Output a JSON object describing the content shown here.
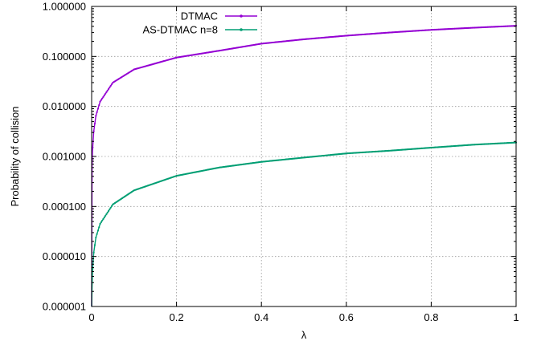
{
  "chart_data": {
    "type": "line",
    "title": "",
    "xlabel": "λ",
    "ylabel": "Probability of collision",
    "xlim": [
      0,
      1
    ],
    "ylim": [
      1e-06,
      1
    ],
    "yscale": "log",
    "grid": true,
    "legend_position": "top-left",
    "x_ticks": [
      "0",
      "0.2",
      "0.4",
      "0.6",
      "0.8",
      "1"
    ],
    "y_ticks": [
      "0.000001",
      "0.000010",
      "0.000100",
      "0.001000",
      "0.010000",
      "0.100000",
      "1.000000"
    ],
    "series": [
      {
        "name": "DTMAC",
        "color": "#9400d3",
        "x": [
          0.001,
          0.002,
          0.005,
          0.01,
          0.02,
          0.05,
          0.1,
          0.2,
          0.3,
          0.4,
          0.5,
          0.6,
          0.7,
          0.8,
          0.9,
          1.0
        ],
        "y": [
          0.00065,
          0.0013,
          0.0032,
          0.0065,
          0.0125,
          0.03,
          0.055,
          0.095,
          0.13,
          0.18,
          0.22,
          0.26,
          0.3,
          0.34,
          0.375,
          0.41
        ]
      },
      {
        "name": "AS-DTMAC n=8",
        "color": "#009e73",
        "x": [
          0.001,
          0.002,
          0.005,
          0.01,
          0.02,
          0.05,
          0.1,
          0.2,
          0.3,
          0.4,
          0.5,
          0.6,
          0.7,
          0.8,
          0.9,
          1.0
        ],
        "y": [
          2.5e-06,
          5e-06,
          1.2e-05,
          2.4e-05,
          4.5e-05,
          0.00011,
          0.00021,
          0.00041,
          0.0006,
          0.00078,
          0.00095,
          0.00115,
          0.0013,
          0.0015,
          0.00172,
          0.0019
        ]
      }
    ]
  }
}
